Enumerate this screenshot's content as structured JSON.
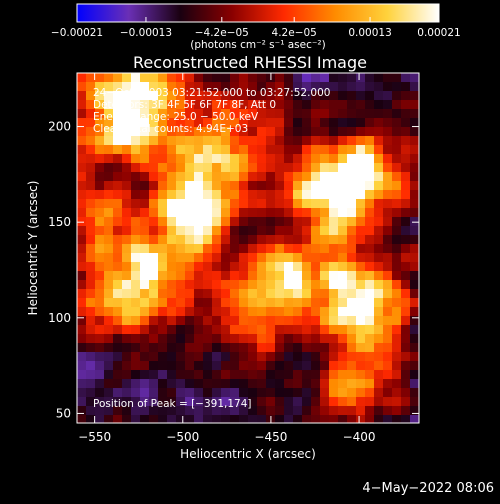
{
  "chart_data": {
    "type": "heatmap",
    "title": "Reconstructed RHESSI Image",
    "xlabel": "Heliocentric X (arcsec)",
    "ylabel": "Heliocentric Y (arcsec)",
    "xlim": [
      -560,
      -366
    ],
    "ylim": [
      45,
      228
    ],
    "xticks": [
      -550,
      -500,
      -450,
      -400
    ],
    "xtick_labels": [
      "−550",
      "−500",
      "−450",
      "−400"
    ],
    "yticks": [
      50,
      100,
      150,
      200
    ],
    "ytick_labels": [
      "50",
      "100",
      "150",
      "200"
    ],
    "colorbar": {
      "range": [
        -0.00021,
        0.00021
      ],
      "ticks": [
        -0.00021,
        -0.00013,
        -4.2e-05,
        4.2e-05,
        0.00013,
        0.00021
      ],
      "tick_labels": [
        "−0.00021",
        "−0.00013",
        "−4.2e−05",
        "4.2e−05",
        "0.00013",
        "0.00021"
      ],
      "units": "(photons cm⁻² s⁻¹ asec⁻²)",
      "colors": [
        "#0000ff",
        "#6a2fb5",
        "#1a0010",
        "#8a0000",
        "#ff2a00",
        "#ff8c00",
        "#ffd23c",
        "#ffffff"
      ]
    },
    "annotations": [
      "24−Oct−2003 03:21:52.000 to 03:27:52.000",
      "Detectors: 3F 4F 5F 6F 7F 8F, Att 0",
      "Energy Range: 25.0 − 50.0 keV",
      "Clean    Total counts: 4.94E+03"
    ],
    "peak_label": "Position of Peak = [−391,174]",
    "peak": [
      -391,
      174
    ],
    "sources": [
      {
        "x": -490,
        "y": 165,
        "strength": 1.0
      },
      {
        "x": -520,
        "y": 215,
        "strength": 0.9
      },
      {
        "x": -540,
        "y": 205,
        "strength": 0.7
      },
      {
        "x": -470,
        "y": 195,
        "strength": 0.6
      },
      {
        "x": -400,
        "y": 175,
        "strength": 0.9
      },
      {
        "x": -420,
        "y": 160,
        "strength": 0.7
      },
      {
        "x": -395,
        "y": 105,
        "strength": 0.9
      },
      {
        "x": -430,
        "y": 120,
        "strength": 0.6
      },
      {
        "x": -535,
        "y": 110,
        "strength": 0.7
      },
      {
        "x": -460,
        "y": 110,
        "strength": 0.6
      },
      {
        "x": -510,
        "y": 130,
        "strength": 0.7
      },
      {
        "x": -545,
        "y": 150,
        "strength": 0.5
      },
      {
        "x": -400,
        "y": 65,
        "strength": 0.5
      }
    ]
  },
  "footer": {
    "date": "4−May−2022 08:06"
  }
}
